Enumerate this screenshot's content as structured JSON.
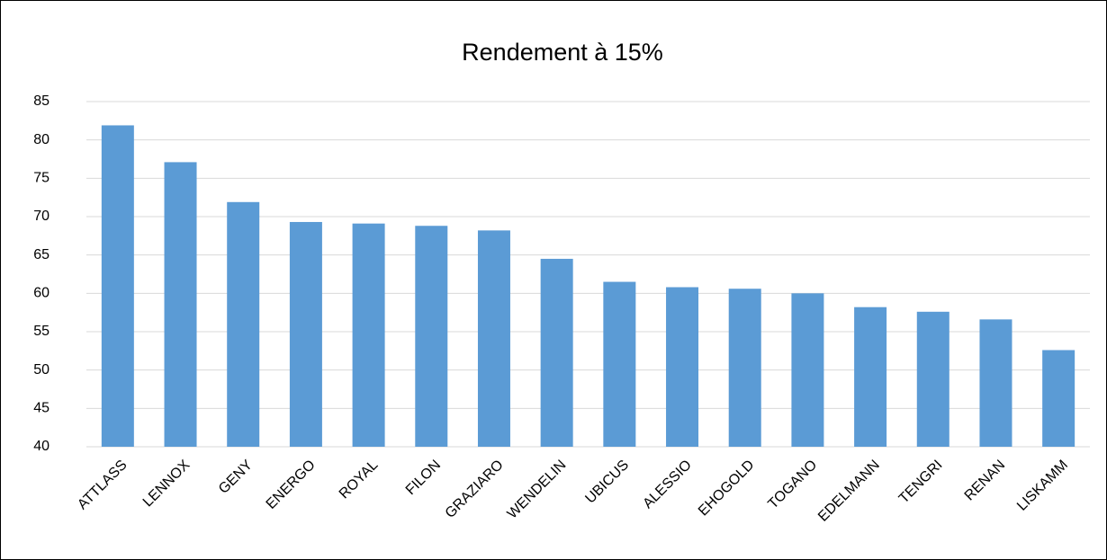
{
  "chart_data": {
    "type": "bar",
    "title": "Rendement à 15%",
    "categories": [
      "ATTLASS",
      "LENNOX",
      "GENY",
      "ENERGO",
      "ROYAL",
      "FILON",
      "GRAZIARO",
      "WENDELIN",
      "UBICUS",
      "ALESSIO",
      "EHOGOLD",
      "TOGANO",
      "EDELMANN",
      "TENGRI",
      "RENAN",
      "LISKAMM"
    ],
    "values": [
      81.9,
      77.1,
      71.9,
      69.3,
      69.1,
      68.8,
      68.2,
      64.5,
      61.5,
      60.8,
      60.6,
      60.0,
      58.2,
      57.6,
      56.6,
      52.6
    ],
    "color": "#5b9bd5",
    "ylim": [
      40,
      85
    ],
    "yticks": [
      40,
      45,
      50,
      55,
      60,
      65,
      70,
      75,
      80,
      85
    ],
    "grid": true
  }
}
